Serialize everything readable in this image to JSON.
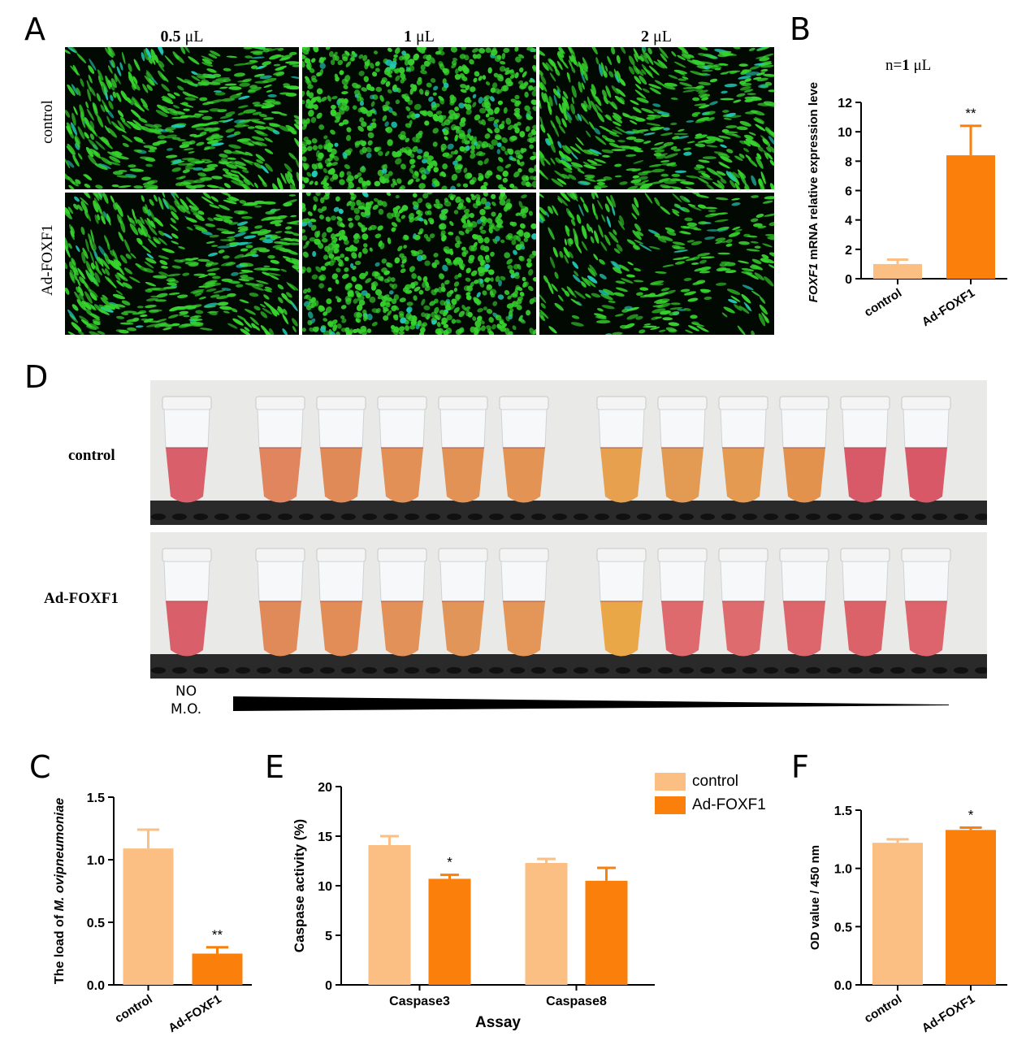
{
  "panels": {
    "A": {
      "letter": "A",
      "columns": [
        {
          "bold": "0.5",
          "unit": " μL"
        },
        {
          "bold": "1",
          "unit": " μL"
        },
        {
          "bold": "2",
          "unit": " μL"
        }
      ],
      "rows": [
        "control",
        "Ad-FOXF1"
      ]
    },
    "B": {
      "letter": "B",
      "note_prefix": "n=",
      "note_bold": "1",
      "note_unit": " μL"
    },
    "C": {
      "letter": "C"
    },
    "D": {
      "letter": "D",
      "rows": [
        "control",
        "Ad-FOXF1"
      ],
      "no_mo_line1": "NO",
      "no_mo_line2": "M.O.",
      "tube_colors": {
        "control": [
          "#d9606a",
          "#e0855e",
          "#e08a58",
          "#e29055",
          "#e29255",
          "#e39455",
          "#e6a04e",
          "#e39a52",
          "#e49a50",
          "#e3924e",
          "#d85a68",
          "#d85868"
        ],
        "Ad-FOXF1": [
          "#d9606a",
          "#e08a5a",
          "#e28d58",
          "#e29258",
          "#e29558",
          "#e39657",
          "#e9a748",
          "#df6a6e",
          "#de6c6e",
          "#dd666c",
          "#dc626a",
          "#dd646c"
        ]
      }
    },
    "E": {
      "letter": "E"
    },
    "F": {
      "letter": "F"
    }
  },
  "colors": {
    "control": "#fbbf84",
    "ad_foxf1": "#fa7f0b",
    "cell_green": "#36d22e",
    "cell_cyan": "#22c8b4"
  },
  "chart_data": [
    {
      "id": "B",
      "type": "bar",
      "title": "n=1 μL",
      "ylabel_italic": "FOXF1",
      "ylabel_rest": " mRNA relative expression level",
      "categories": [
        "control",
        "Ad-FOXF1"
      ],
      "values": [
        1.0,
        8.4
      ],
      "errors": [
        0.3,
        2.0
      ],
      "significance": [
        "",
        "**"
      ],
      "ylim": [
        0,
        12
      ],
      "yticks": [
        "0",
        "2",
        "4",
        "6",
        "8",
        "10",
        "12"
      ]
    },
    {
      "id": "C",
      "type": "bar",
      "ylabel_prefix": "The load of ",
      "ylabel_italic": "M. ovipneumoniae",
      "categories": [
        "control",
        "Ad-FOXF1"
      ],
      "values": [
        1.09,
        0.25
      ],
      "errors": [
        0.15,
        0.05
      ],
      "significance": [
        "",
        "**"
      ],
      "ylim": [
        0,
        1.5
      ],
      "yticks": [
        "0.0",
        "0.5",
        "1.0",
        "1.5"
      ]
    },
    {
      "id": "E",
      "type": "bar",
      "ylabel": "Caspase activity (%)",
      "xlabel": "Assay",
      "categories": [
        "Caspase3",
        "Caspase8"
      ],
      "series": [
        {
          "name": "control",
          "values": [
            14.1,
            12.3
          ],
          "errors": [
            0.9,
            0.4
          ],
          "significance": [
            "",
            ""
          ]
        },
        {
          "name": "Ad-FOXF1",
          "values": [
            10.7,
            10.5
          ],
          "errors": [
            0.4,
            1.3
          ],
          "significance": [
            "*",
            ""
          ]
        }
      ],
      "ylim": [
        0,
        20
      ],
      "yticks": [
        "0",
        "5",
        "10",
        "15",
        "20"
      ],
      "legend_position": "top-right"
    },
    {
      "id": "F",
      "type": "bar",
      "ylabel": "OD value / 450 nm",
      "categories": [
        "control",
        "Ad-FOXF1"
      ],
      "values": [
        1.22,
        1.33
      ],
      "errors": [
        0.03,
        0.02
      ],
      "significance": [
        "",
        "*"
      ],
      "ylim": [
        0,
        1.5
      ],
      "yticks": [
        "0.0",
        "0.5",
        "1.0",
        "1.5"
      ]
    }
  ]
}
